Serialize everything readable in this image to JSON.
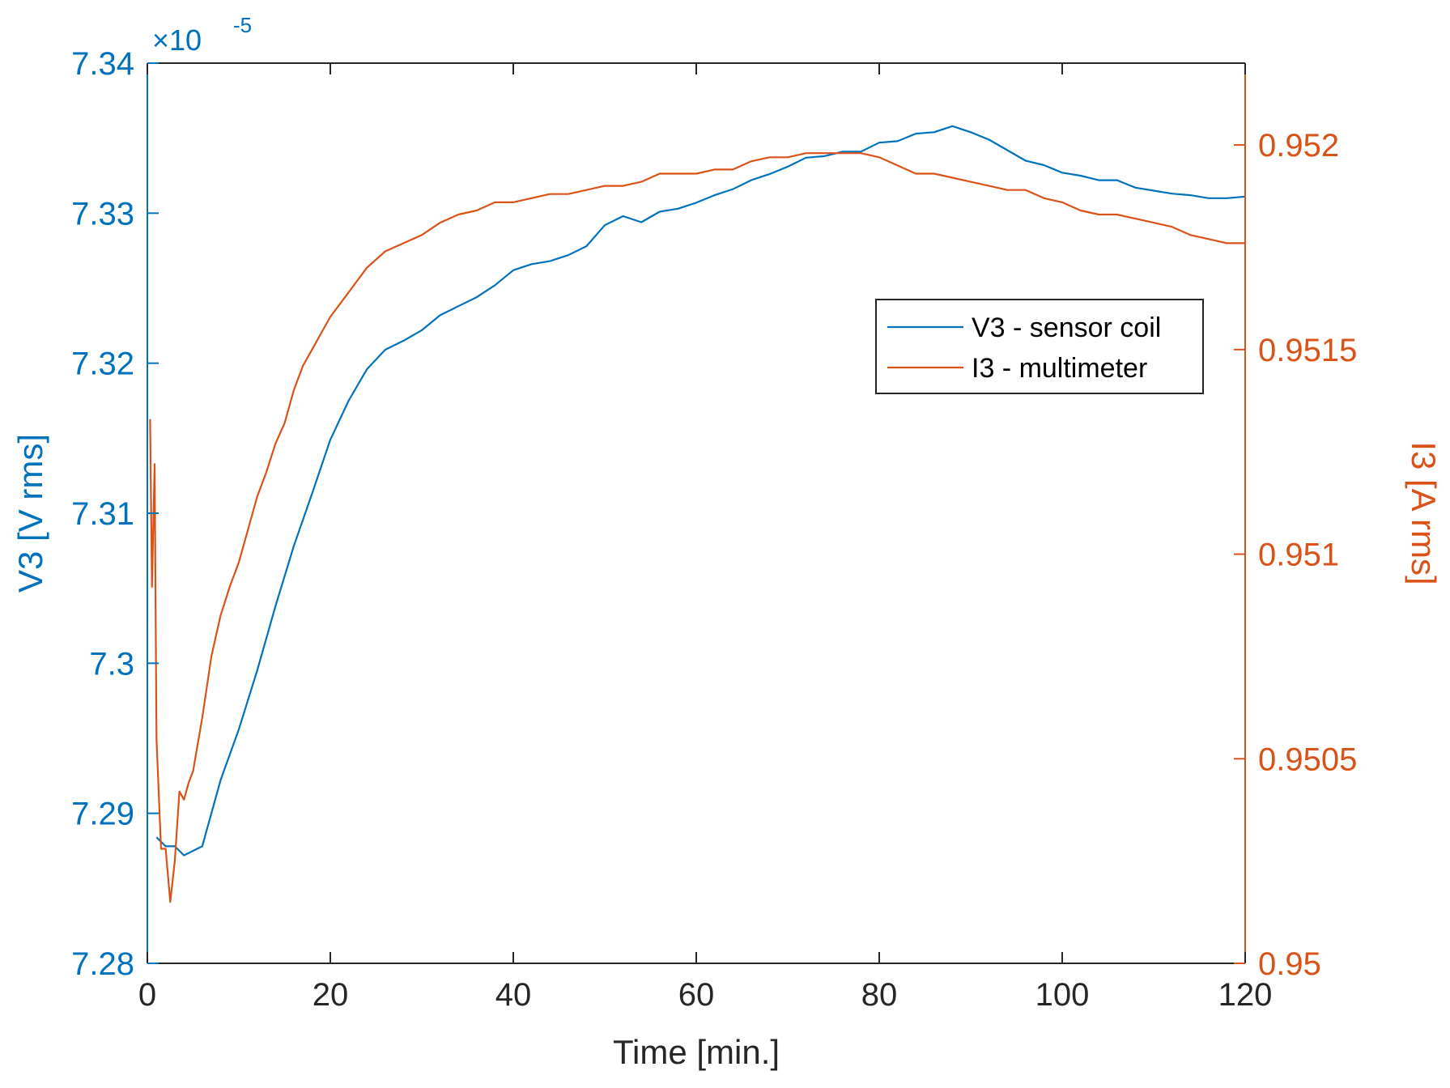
{
  "chart_data": {
    "type": "line",
    "title": "",
    "xlabel": "Time [min.]",
    "ylabel_left": "V3 [V rms]",
    "ylabel_right": "I3 [A rms]",
    "xlim": [
      0,
      120
    ],
    "ylim_left": [
      7.28,
      7.34
    ],
    "ylim_right": [
      0.95,
      0.9522
    ],
    "x_ticks": [
      "0",
      "20",
      "40",
      "60",
      "80",
      "100",
      "120"
    ],
    "y_left_ticks": [
      "7.28",
      "7.29",
      "7.3",
      "7.31",
      "7.32",
      "7.33",
      "7.34"
    ],
    "y_right_ticks": [
      "0.95",
      "0.9505",
      "0.951",
      "0.9515",
      "0.952"
    ],
    "y_left_exponent": {
      "base": "×10",
      "power": "-5"
    },
    "grid": false,
    "legend_position": "upper-right",
    "colors": {
      "left_axis": "#0072BD",
      "right_axis": "#D95319",
      "axes": "#262626"
    },
    "series": [
      {
        "name": "V3 - sensor coil",
        "axis": "left",
        "color": "#0072BD",
        "x": [
          1,
          2,
          3,
          4,
          5,
          6,
          8,
          10,
          12,
          14,
          16,
          18,
          20,
          22,
          24,
          26,
          28,
          30,
          32,
          34,
          36,
          38,
          40,
          42,
          44,
          46,
          48,
          50,
          52,
          54,
          56,
          58,
          60,
          62,
          64,
          66,
          68,
          70,
          72,
          74,
          76,
          78,
          80,
          82,
          84,
          86,
          88,
          90,
          92,
          94,
          96,
          98,
          100,
          102,
          104,
          106,
          108,
          110,
          112,
          114,
          116,
          118,
          120
        ],
        "values": [
          7.2884,
          7.2878,
          7.2878,
          7.2872,
          7.2875,
          7.2878,
          7.2922,
          7.2956,
          7.2995,
          7.3038,
          7.3078,
          7.3113,
          7.3149,
          7.3175,
          7.3196,
          7.3209,
          7.3215,
          7.3222,
          7.3232,
          7.3238,
          7.3244,
          7.3252,
          7.3262,
          7.3266,
          7.3268,
          7.3272,
          7.3278,
          7.3292,
          7.3298,
          7.3294,
          7.3301,
          7.3303,
          7.3307,
          7.3312,
          7.3316,
          7.3322,
          7.3326,
          7.3331,
          7.3337,
          7.3338,
          7.3341,
          7.3341,
          7.3347,
          7.3348,
          7.3353,
          7.3354,
          7.3358,
          7.3354,
          7.3349,
          7.3342,
          7.3335,
          7.3332,
          7.3327,
          7.3325,
          7.3322,
          7.3322,
          7.3317,
          7.3315,
          7.3313,
          7.3312,
          7.331,
          7.331,
          7.3311
        ]
      },
      {
        "name": "I3 - multimeter",
        "axis": "right",
        "color": "#D95319",
        "x": [
          0.3,
          0.5,
          0.8,
          1,
          1.5,
          2,
          2.5,
          3,
          3.5,
          4,
          4.5,
          5,
          6,
          7,
          8,
          9,
          10,
          11,
          12,
          13,
          14,
          15,
          16,
          17,
          18,
          19,
          20,
          22,
          24,
          26,
          28,
          30,
          32,
          34,
          36,
          38,
          40,
          42,
          44,
          46,
          48,
          50,
          52,
          54,
          56,
          58,
          60,
          62,
          64,
          66,
          68,
          70,
          72,
          74,
          76,
          78,
          80,
          82,
          84,
          86,
          88,
          90,
          92,
          94,
          96,
          98,
          100,
          102,
          104,
          106,
          108,
          110,
          112,
          114,
          116,
          118,
          120
        ],
        "values": [
          0.95133,
          0.95092,
          0.95122,
          0.95055,
          0.95028,
          0.95028,
          0.95015,
          0.95025,
          0.95042,
          0.9504,
          0.95044,
          0.95047,
          0.9506,
          0.95075,
          0.95085,
          0.95092,
          0.95098,
          0.95106,
          0.95114,
          0.9512,
          0.95127,
          0.95132,
          0.9514,
          0.95146,
          0.9515,
          0.95154,
          0.95158,
          0.95164,
          0.9517,
          0.95174,
          0.95176,
          0.95178,
          0.95181,
          0.95183,
          0.95184,
          0.95186,
          0.95186,
          0.95187,
          0.95188,
          0.95188,
          0.95189,
          0.9519,
          0.9519,
          0.95191,
          0.95193,
          0.95193,
          0.95193,
          0.95194,
          0.95194,
          0.95196,
          0.95197,
          0.95197,
          0.95198,
          0.95198,
          0.95198,
          0.95198,
          0.95197,
          0.95195,
          0.95193,
          0.95193,
          0.95192,
          0.95191,
          0.9519,
          0.95189,
          0.95189,
          0.95187,
          0.95186,
          0.95184,
          0.95183,
          0.95183,
          0.95182,
          0.95181,
          0.9518,
          0.95178,
          0.95177,
          0.95176,
          0.95176
        ]
      }
    ]
  }
}
